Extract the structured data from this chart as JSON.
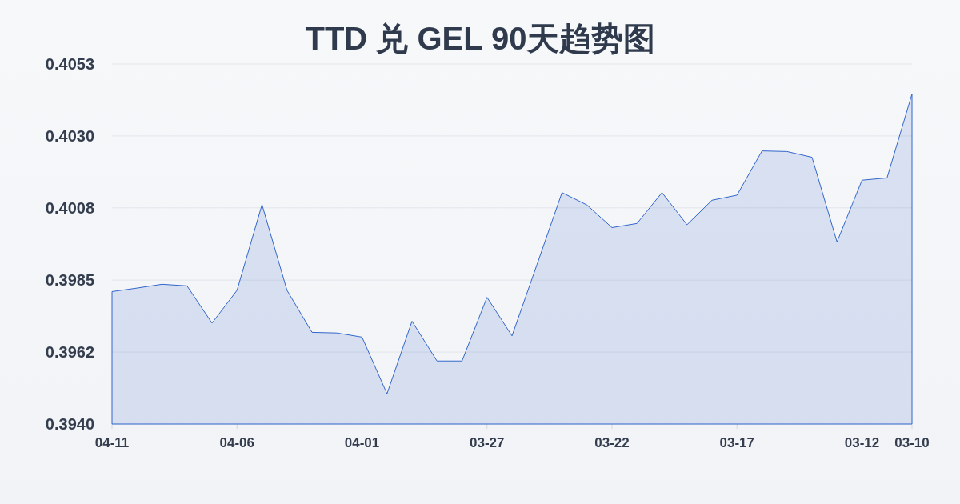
{
  "chart_data": {
    "type": "area",
    "title": "TTD 兑 GEL 90天趋势图",
    "categories": [
      "04-11",
      null,
      null,
      null,
      null,
      "04-06",
      null,
      null,
      null,
      null,
      "04-01",
      null,
      null,
      null,
      null,
      "03-27",
      null,
      null,
      null,
      null,
      "03-22",
      null,
      null,
      null,
      null,
      "03-17",
      null,
      null,
      null,
      null,
      "03-12",
      null,
      "03-10"
    ],
    "values": [
      0.39814,
      0.39825,
      0.39837,
      0.39832,
      0.39715,
      0.39818,
      0.40087,
      0.39818,
      0.39686,
      0.39684,
      0.39671,
      0.39493,
      0.39721,
      0.39596,
      0.39596,
      0.39796,
      0.39675,
      0.39899,
      0.40125,
      0.40086,
      0.40015,
      0.40028,
      0.40125,
      0.40024,
      0.40101,
      0.40117,
      0.40256,
      0.40254,
      0.40236,
      0.3997,
      0.40164,
      0.40171,
      0.40435
    ],
    "color": "#3366cc",
    "ylim": [
      0.39398,
      0.40529
    ],
    "yticks": [
      {
        "value": 0.39398,
        "label": "0.3940"
      },
      {
        "value": 0.39624,
        "label": "0.3962"
      },
      {
        "value": 0.3985,
        "label": "0.3985"
      },
      {
        "value": 0.40077,
        "label": "0.4008"
      },
      {
        "value": 0.40303,
        "label": "0.4030"
      },
      {
        "value": 0.40529,
        "label": "0.4053"
      }
    ],
    "grid": "y"
  }
}
